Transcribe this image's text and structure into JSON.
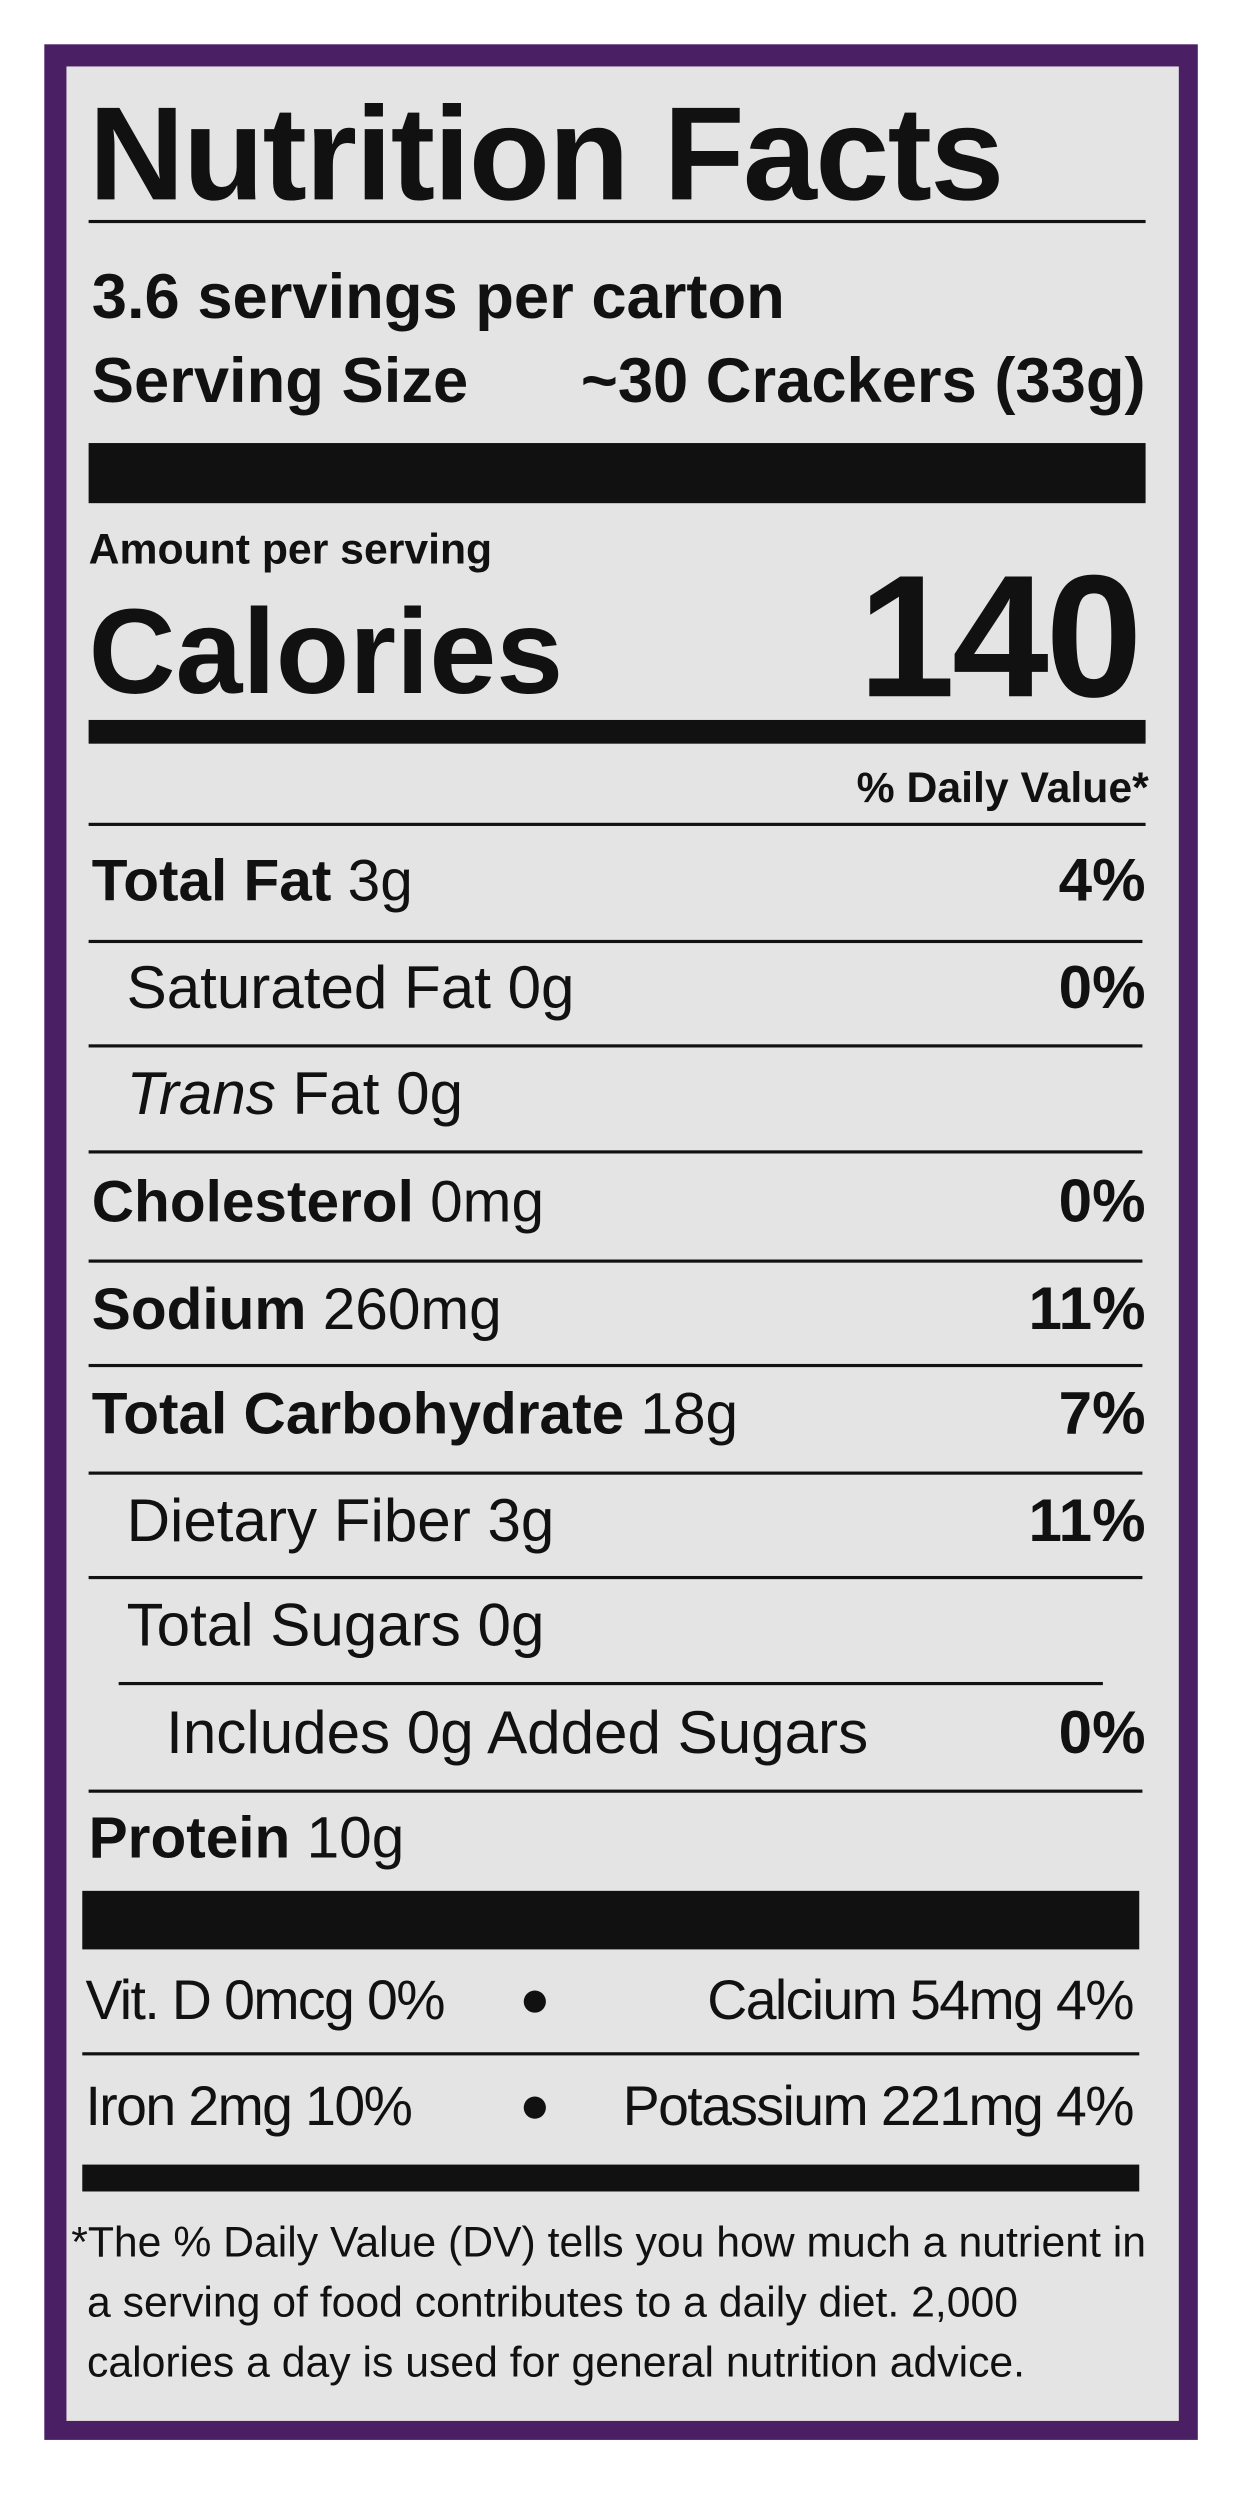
{
  "title": "Nutrition Facts",
  "servings": "3.6 servings per carton",
  "serving_size": {
    "label": "Serving Size",
    "value": "~30 Crackers (33g)"
  },
  "amount_per_serving": "Amount per serving",
  "calories": {
    "label": "Calories",
    "value": 140
  },
  "daily_value_header": "% Daily Value*",
  "nutrients": [
    {
      "name": "Total Fat",
      "amount": "3g",
      "dv": "4%"
    },
    {
      "name": "Saturated Fat",
      "amount": "0g",
      "dv": "0%"
    },
    {
      "name": "Trans",
      "amount": "Fat 0g"
    },
    {
      "name": "Cholesterol",
      "amount": "0mg",
      "dv": "0%"
    },
    {
      "name": "Sodium",
      "amount": "260mg",
      "dv": "11%"
    },
    {
      "name": "Total Carbohydrate",
      "amount": "18g",
      "dv": "7%"
    },
    {
      "name": "Dietary Fiber",
      "amount": "3g",
      "dv": "11%"
    },
    {
      "name": "Total Sugars",
      "amount": "0g"
    },
    {
      "name": "Includes 0g Added Sugars",
      "dv": "0%"
    },
    {
      "name": "Protein",
      "amount": "10g"
    }
  ],
  "vitamins": [
    [
      "Vit. D 0mcg 0%",
      "Calcium 54mg 4%"
    ],
    [
      "Iron 2mg 10%",
      "Potassium 221mg 4%"
    ]
  ],
  "footnote": [
    "*The % Daily Value (DV) tells you how much a nutrient in",
    "a serving of food contributes to a daily diet. 2,000",
    "calories a day is used for general nutrition advice."
  ]
}
